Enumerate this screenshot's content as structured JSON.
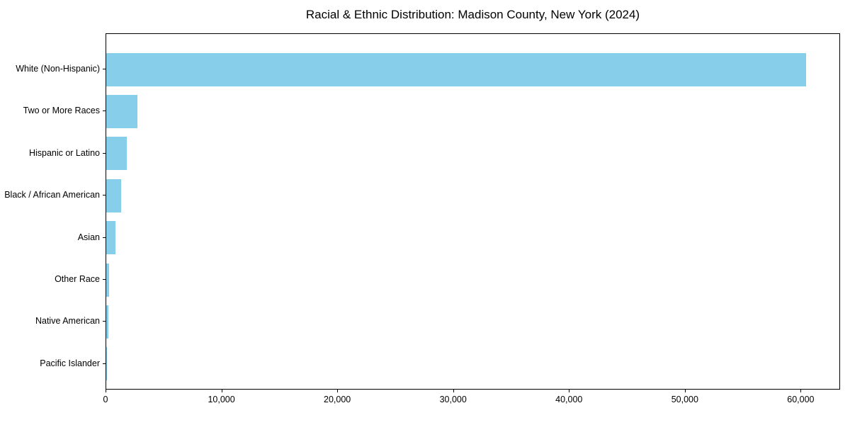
{
  "figure": {
    "background": "#ffffff",
    "text_color": "#000000"
  },
  "chart_data": {
    "type": "bar",
    "orientation": "horizontal",
    "title": "Racial & Ethnic Distribution: Madison County, New York (2024)",
    "xlabel": "",
    "ylabel": "",
    "categories": [
      "White (Non-Hispanic)",
      "Two or More Races",
      "Hispanic or Latino",
      "Black / African American",
      "Asian",
      "Other Race",
      "Native American",
      "Pacific Islander"
    ],
    "values": [
      60400,
      2700,
      1800,
      1300,
      800,
      250,
      200,
      25
    ],
    "bar_color": "#87CEEB",
    "xlim": [
      0,
      63400
    ],
    "x_ticks": [
      0,
      10000,
      20000,
      30000,
      40000,
      50000,
      60000
    ],
    "x_tick_labels": [
      "0",
      "10,000",
      "20,000",
      "30,000",
      "40,000",
      "50,000",
      "60,000"
    ],
    "grid": false,
    "legend_position": "none"
  }
}
